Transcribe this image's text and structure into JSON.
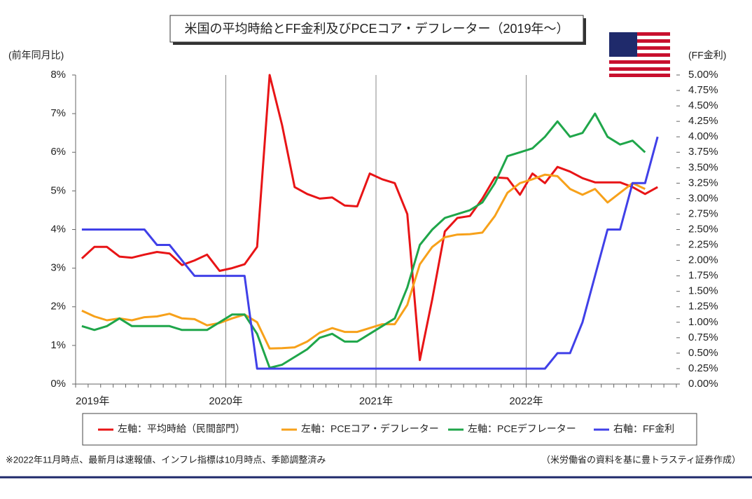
{
  "chart_data": {
    "type": "line",
    "title": "米国の平均時給とFF金利及びPCEコア・デフレーター（2019年～）",
    "ylabel": "(前年同月比)",
    "y2label": "(FF金利)",
    "categories": [
      "2019年",
      null,
      null,
      null,
      null,
      null,
      null,
      null,
      null,
      null,
      null,
      null,
      "2020年",
      null,
      null,
      null,
      null,
      null,
      null,
      null,
      null,
      null,
      null,
      null,
      "2021年",
      null,
      null,
      null,
      null,
      null,
      null,
      null,
      null,
      null,
      null,
      null,
      "2022年",
      null,
      null,
      null,
      null,
      null,
      null,
      null,
      null,
      null,
      null,
      null
    ],
    "ylim": [
      0,
      8
    ],
    "yticks": [
      {
        "value": 0,
        "label": "0%"
      },
      {
        "value": 1,
        "label": "1%"
      },
      {
        "value": 2,
        "label": "2%"
      },
      {
        "value": 3,
        "label": "3%"
      },
      {
        "value": 4,
        "label": "4%"
      },
      {
        "value": 5,
        "label": "5%"
      },
      {
        "value": 6,
        "label": "6%"
      },
      {
        "value": 7,
        "label": "7%"
      },
      {
        "value": 8,
        "label": "8%"
      }
    ],
    "y2lim": [
      0,
      5
    ],
    "y2ticks": [
      {
        "value": 0,
        "label": "0.00%"
      },
      {
        "value": 0.25,
        "label": "0.25%"
      },
      {
        "value": 0.5,
        "label": "0.50%"
      },
      {
        "value": 0.75,
        "label": "0.75%"
      },
      {
        "value": 1,
        "label": "1.00%"
      },
      {
        "value": 1.25,
        "label": "1.25%"
      },
      {
        "value": 1.5,
        "label": "1.50%"
      },
      {
        "value": 1.75,
        "label": "1.75%"
      },
      {
        "value": 2,
        "label": "2.00%"
      },
      {
        "value": 2.25,
        "label": "2.25%"
      },
      {
        "value": 2.5,
        "label": "2.50%"
      },
      {
        "value": 2.75,
        "label": "2.75%"
      },
      {
        "value": 3,
        "label": "3.00%"
      },
      {
        "value": 3.25,
        "label": "3.25%"
      },
      {
        "value": 3.5,
        "label": "3.50%"
      },
      {
        "value": 3.75,
        "label": "3.75%"
      },
      {
        "value": 4,
        "label": "4.00%"
      },
      {
        "value": 4.25,
        "label": "4.25%"
      },
      {
        "value": 4.5,
        "label": "4.50%"
      },
      {
        "value": 4.75,
        "label": "4.75%"
      },
      {
        "value": 5,
        "label": "5.00%"
      }
    ],
    "series": [
      {
        "name": "左軸：平均時給（民間部門）",
        "color": "#e81416",
        "values": [
          3.25,
          3.55,
          3.55,
          3.3,
          3.27,
          3.35,
          3.42,
          3.38,
          3.08,
          3.2,
          3.35,
          2.93,
          3.0,
          3.1,
          3.55,
          8.0,
          6.7,
          5.1,
          4.92,
          4.8,
          4.83,
          4.62,
          4.6,
          5.45,
          5.3,
          5.2,
          4.4,
          0.62,
          2.2,
          3.95,
          4.3,
          4.35,
          4.8,
          5.35,
          5.33,
          4.9,
          5.45,
          5.2,
          5.62,
          5.5,
          5.33,
          5.22,
          5.22,
          5.22,
          5.1,
          4.92,
          5.1,
          null
        ]
      },
      {
        "name": "左軸：PCEコア・デフレーター",
        "color": "#f7a11a",
        "values": [
          1.9,
          1.75,
          1.65,
          1.7,
          1.65,
          1.73,
          1.75,
          1.82,
          1.7,
          1.68,
          1.52,
          1.58,
          1.7,
          1.8,
          1.6,
          0.92,
          0.93,
          0.95,
          1.1,
          1.33,
          1.45,
          1.35,
          1.35,
          1.45,
          1.55,
          1.55,
          2.05,
          3.1,
          3.55,
          3.8,
          3.87,
          3.88,
          3.92,
          4.35,
          4.95,
          5.2,
          5.3,
          5.42,
          5.38,
          5.05,
          4.9,
          5.05,
          4.7,
          4.95,
          5.2,
          5.05,
          null,
          null
        ]
      },
      {
        "name": "左軸：PCEデフレーター",
        "color": "#1fa64a",
        "values": [
          1.5,
          1.4,
          1.5,
          1.7,
          1.5,
          1.5,
          1.5,
          1.5,
          1.4,
          1.4,
          1.4,
          1.6,
          1.8,
          1.8,
          1.3,
          0.42,
          0.5,
          0.7,
          0.9,
          1.2,
          1.3,
          1.1,
          1.1,
          1.3,
          1.5,
          1.7,
          2.5,
          3.6,
          4.0,
          4.3,
          4.4,
          4.5,
          4.7,
          5.2,
          5.9,
          6.0,
          6.1,
          6.4,
          6.8,
          6.4,
          6.5,
          7.0,
          6.4,
          6.2,
          6.3,
          6.0,
          null,
          null
        ]
      },
      {
        "name": "右軸：FF金利",
        "color": "#4040e8",
        "axis": "y2",
        "values": [
          2.5,
          2.5,
          2.5,
          2.5,
          2.5,
          2.5,
          2.25,
          2.25,
          2.0,
          1.75,
          1.75,
          1.75,
          1.75,
          1.75,
          0.25,
          0.25,
          0.25,
          0.25,
          0.25,
          0.25,
          0.25,
          0.25,
          0.25,
          0.25,
          0.25,
          0.25,
          0.25,
          0.25,
          0.25,
          0.25,
          0.25,
          0.25,
          0.25,
          0.25,
          0.25,
          0.25,
          0.25,
          0.25,
          0.5,
          0.5,
          1.0,
          1.75,
          2.5,
          2.5,
          3.25,
          3.25,
          4.0,
          null
        ]
      }
    ],
    "grid": true,
    "notes": [
      "※2022年11月時点、最新月は速報値、インフレ指標は10月時点、季節調整済み",
      "（米労働省の資料を基に豊トラスティ証券作成）"
    ]
  }
}
